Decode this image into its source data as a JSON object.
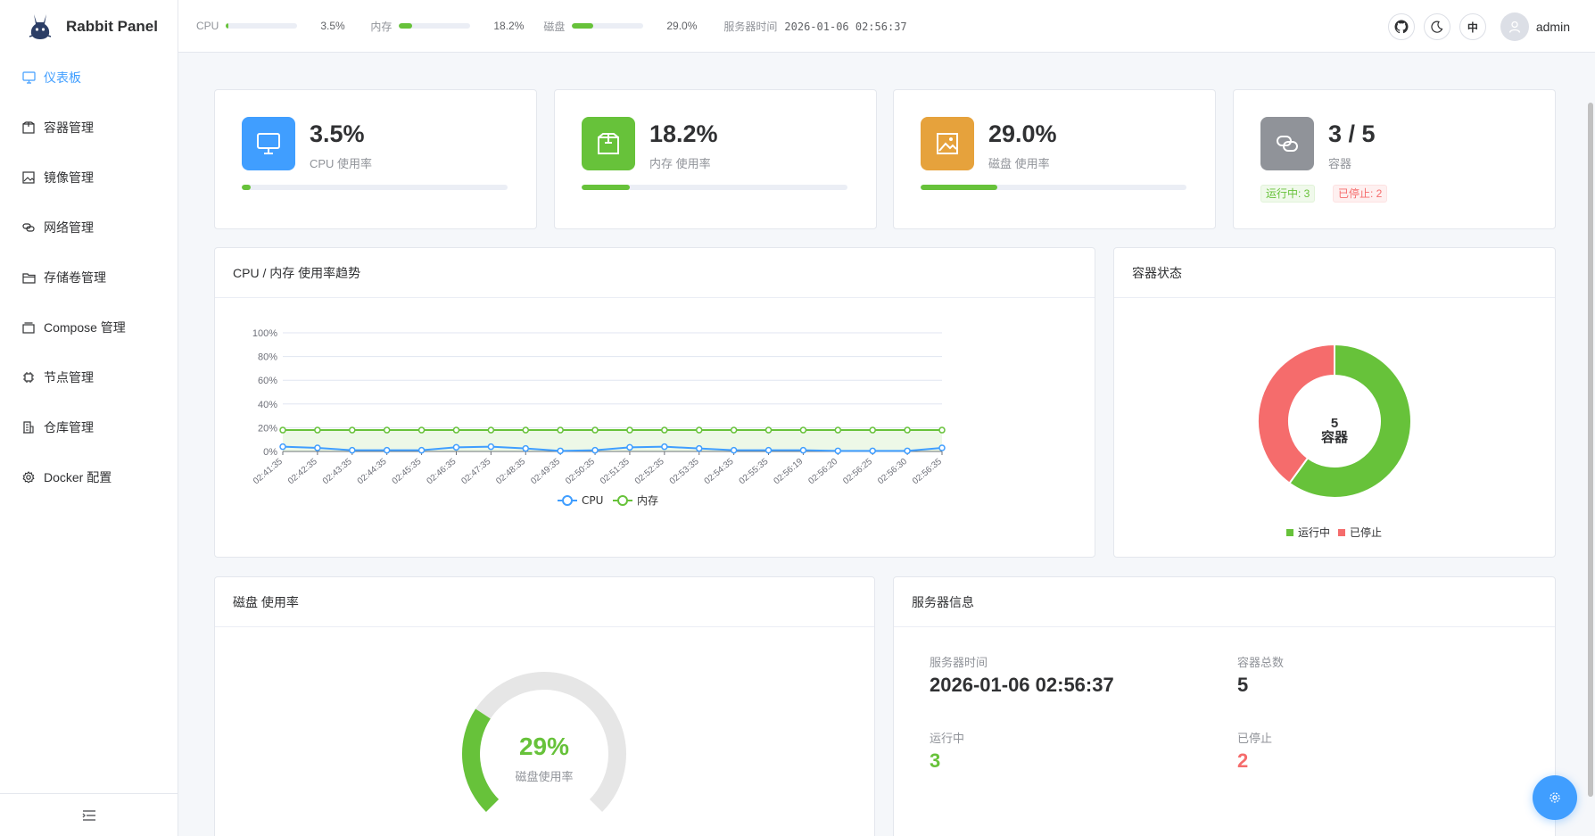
{
  "app": {
    "title": "Rabbit Panel"
  },
  "sidebar": {
    "items": [
      {
        "label": "仪表板",
        "icon": "monitor-icon",
        "active": true
      },
      {
        "label": "容器管理",
        "icon": "box-icon"
      },
      {
        "label": "镜像管理",
        "icon": "image-icon"
      },
      {
        "label": "网络管理",
        "icon": "link-icon"
      },
      {
        "label": "存储卷管理",
        "icon": "folder-icon"
      },
      {
        "label": "Compose 管理",
        "icon": "stack-icon"
      },
      {
        "label": "节点管理",
        "icon": "cpu-icon"
      },
      {
        "label": "仓库管理",
        "icon": "building-icon"
      },
      {
        "label": "Docker 配置",
        "icon": "gear-icon"
      }
    ],
    "collapse_icon": "menu-fold-icon"
  },
  "header": {
    "cpu": {
      "label": "CPU",
      "value": "3.5%",
      "level": 3.5
    },
    "mem": {
      "label": "内存",
      "value": "18.2%",
      "level": 18.2
    },
    "disk": {
      "label": "磁盘",
      "value": "29.0%",
      "level": 29.0
    },
    "server_time_label": "服务器时间",
    "server_time": "2026-01-06 02:56:37",
    "lang_button": "中",
    "username": "admin"
  },
  "stats": {
    "cpu": {
      "value": "3.5%",
      "label": "CPU 使用率",
      "level": 3.5,
      "color": "#409eff"
    },
    "mem": {
      "value": "18.2%",
      "label": "内存 使用率",
      "level": 18.2,
      "color": "#67c23a"
    },
    "disk": {
      "value": "29.0%",
      "label": "磁盘 使用率",
      "level": 29.0,
      "color": "#e6a23c"
    },
    "containers": {
      "value": "3 / 5",
      "label": "容器",
      "running_tag": "运行中: 3",
      "stopped_tag": "已停止: 2",
      "color": "#909399"
    }
  },
  "trend": {
    "title": "CPU / 内存 使用率趋势"
  },
  "container_status": {
    "title": "容器状态",
    "center_count": "5",
    "center_label": "容器",
    "legend_running": "运行中",
    "legend_stopped": "已停止"
  },
  "disk_gauge": {
    "title": "磁盘 使用率",
    "value_text": "29%",
    "label": "磁盘使用率",
    "level": 29
  },
  "server_info": {
    "title": "服务器信息",
    "time_label": "服务器时间",
    "time_value": "2026-01-06 02:56:37",
    "total_label": "容器总数",
    "total_value": "5",
    "running_label": "运行中",
    "running_value": "3",
    "stopped_label": "已停止",
    "stopped_value": "2"
  },
  "chart_data": [
    {
      "type": "line",
      "title": "CPU / 内存 使用率趋势",
      "x": [
        "02:41:35",
        "02:42:35",
        "02:43:35",
        "02:44:35",
        "02:45:35",
        "02:46:35",
        "02:47:35",
        "02:48:35",
        "02:49:35",
        "02:50:35",
        "02:51:35",
        "02:52:35",
        "02:53:35",
        "02:54:35",
        "02:55:35",
        "02:56:19",
        "02:56:20",
        "02:56:25",
        "02:56:30",
        "02:56:35"
      ],
      "y_ticks": [
        "0%",
        "20%",
        "40%",
        "60%",
        "80%",
        "100%"
      ],
      "ylim": [
        0,
        100
      ],
      "grid": true,
      "legend": "bottom",
      "series": [
        {
          "name": "CPU",
          "color": "#409eff",
          "values": [
            4,
            3,
            1,
            1,
            1,
            3.5,
            4,
            2.5,
            0.5,
            1,
            3.5,
            4,
            2.5,
            1,
            1,
            1,
            0.5,
            0.5,
            0.5,
            3
          ]
        },
        {
          "name": "内存",
          "color": "#67c23a",
          "values": [
            18,
            18,
            18,
            18,
            18,
            18,
            18,
            18,
            18,
            18,
            18,
            18,
            18,
            18,
            18,
            18,
            18,
            18,
            18,
            18
          ]
        }
      ]
    },
    {
      "type": "pie",
      "title": "容器状态",
      "categories": [
        "运行中",
        "已停止"
      ],
      "values": [
        3,
        2
      ],
      "colors": [
        "#67c23a",
        "#f56c6c"
      ],
      "legend": "bottom"
    },
    {
      "type": "gauge",
      "title": "磁盘 使用率",
      "values": [
        29
      ],
      "ylim": [
        0,
        100
      ],
      "color": "#67c23a"
    }
  ]
}
